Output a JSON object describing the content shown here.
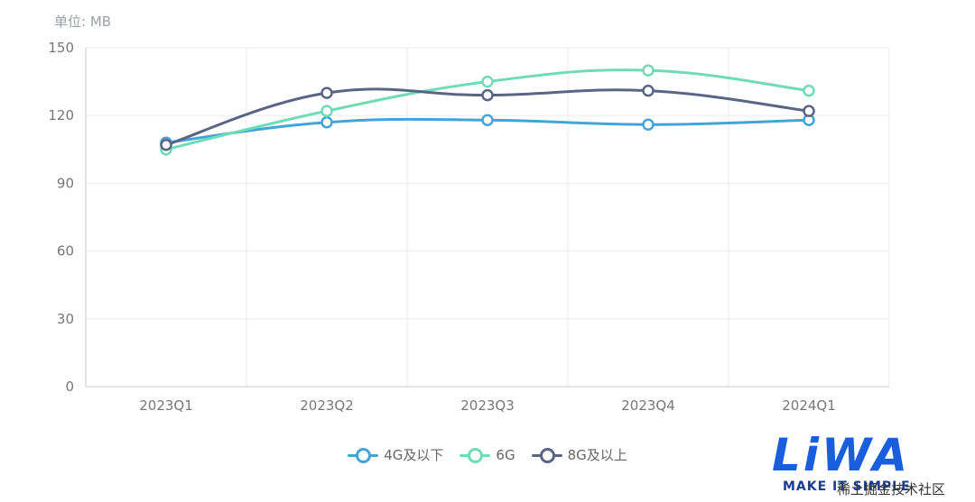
{
  "chart_data": {
    "type": "line",
    "unit_label": "单位: MB",
    "categories": [
      "2023Q1",
      "2023Q2",
      "2023Q3",
      "2023Q4",
      "2024Q1"
    ],
    "ylim": [
      0,
      150
    ],
    "yticks": [
      0,
      30,
      60,
      90,
      120,
      150
    ],
    "grid": true,
    "legend_position": "bottom-center",
    "series": [
      {
        "name": "4G及以下",
        "color": "#44a4d8",
        "values": [
          108,
          117,
          118,
          116,
          118
        ]
      },
      {
        "name": "6G",
        "color": "#6edcb4",
        "values": [
          105,
          122,
          135,
          140,
          131
        ]
      },
      {
        "name": "8G及以上",
        "color": "#5a6585",
        "values": [
          107,
          130,
          129,
          131,
          122
        ]
      }
    ]
  },
  "watermark": {
    "logo_text": "LiWA",
    "tagline": "MAKE IT SIMPLE",
    "site_text": "稀土掘金技术社区"
  }
}
